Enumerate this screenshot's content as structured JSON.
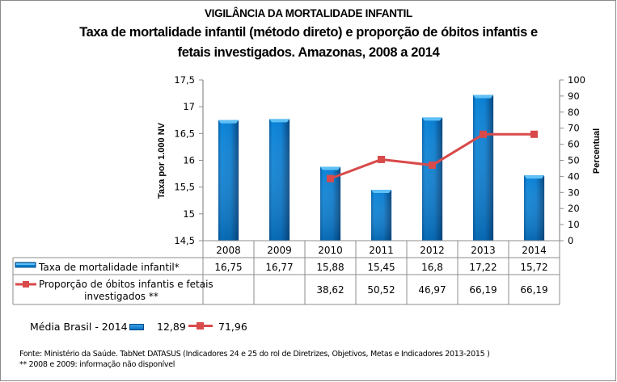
{
  "title": "VIGILÂNCIA DA MORTALIDADE INFANTIL",
  "subtitle_line1": "Taxa de mortalidade infantil (método direto) e proporção de óbitos infantis e",
  "subtitle_line2": "fetais investigados. Amazonas, 2008 a 2014",
  "chart_data": {
    "type": "bar+line",
    "title": "Taxa de mortalidade infantil (método direto) e proporção de óbitos infantis e fetais investigados. Amazonas, 2008 a 2014",
    "categories": [
      "2008",
      "2009",
      "2010",
      "2011",
      "2012",
      "2013",
      "2014"
    ],
    "series": [
      {
        "name": "Taxa de mortalidade infantil*",
        "type": "bar",
        "axis": "left",
        "color": "#0a7dd0",
        "values": [
          16.75,
          16.77,
          15.88,
          15.45,
          16.8,
          17.22,
          15.72
        ],
        "labels": [
          "16,75",
          "16,77",
          "15,88",
          "15,45",
          "16,8",
          "17,22",
          "15,72"
        ]
      },
      {
        "name": "Proporção de óbitos infantis e fetais investigados **",
        "name_line1": "Proporção de óbitos infantis e fetais",
        "name_line2": "investigados **",
        "type": "line",
        "axis": "right",
        "color": "#d94a4a",
        "values": [
          null,
          null,
          38.62,
          50.52,
          46.97,
          66.19,
          66.19
        ],
        "labels": [
          "",
          "",
          "38,62",
          "50,52",
          "46,97",
          "66,19",
          "66,19"
        ]
      }
    ],
    "ylabel": "Taxa  por 1.000 NV",
    "ylim": [
      14.5,
      17.5
    ],
    "yticks": [
      "14,5",
      "15",
      "15,5",
      "16",
      "16,5",
      "17",
      "17,5"
    ],
    "yticks_values": [
      14.5,
      15,
      15.5,
      16,
      16.5,
      17,
      17.5
    ],
    "y2label": "Percentual",
    "y2lim": [
      0,
      100
    ],
    "y2ticks": [
      "0",
      "10",
      "20",
      "30",
      "40",
      "50",
      "60",
      "70",
      "80",
      "90",
      "100"
    ],
    "grid": false,
    "legend": "data-table-bottom"
  },
  "brazil_average": {
    "label": "Média Brasil - 2014 :",
    "bar_value": "12,89",
    "line_value": "71,96"
  },
  "footnotes": {
    "source": "Fonte: Ministério da Saúde. TabNet DATASUS (Indicadores  24 e 25 do rol de Diretrizes, Objetivos, Metas e Indicadores 2013-2015 )",
    "note": "** 2008 e 2009: informação não disponível"
  }
}
